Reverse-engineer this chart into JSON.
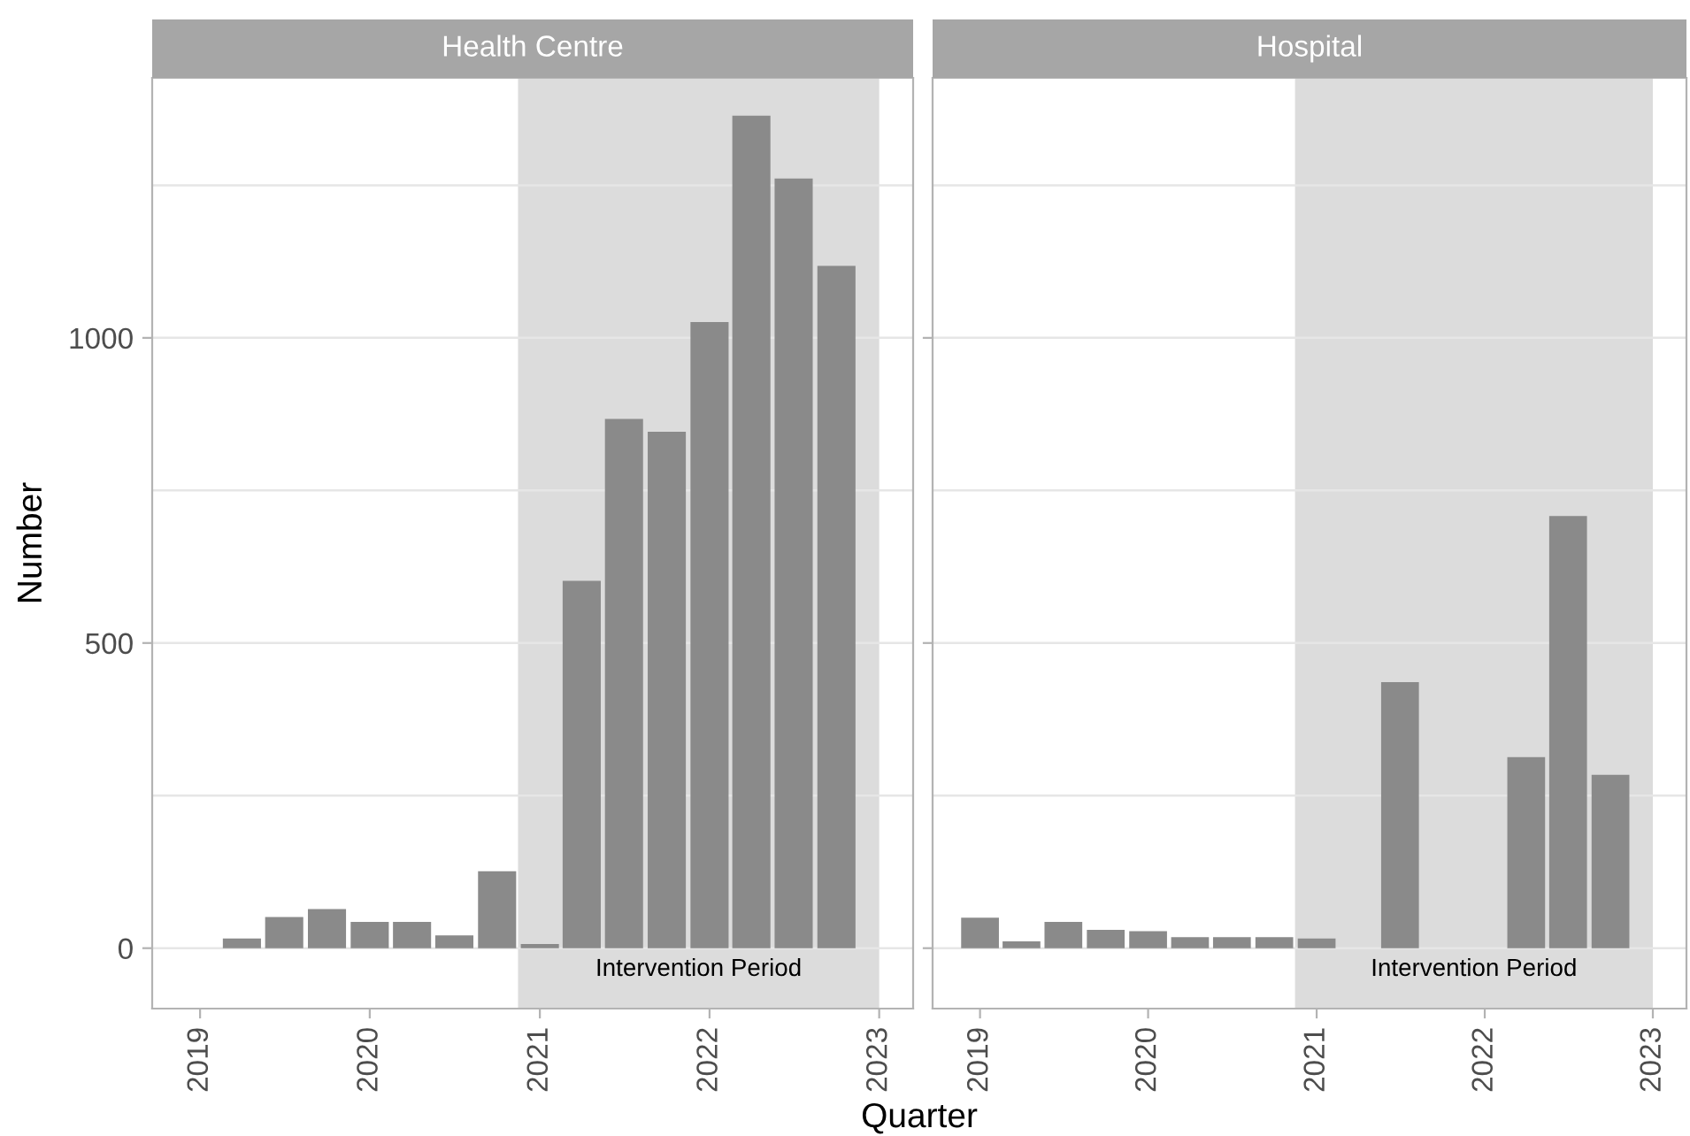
{
  "chart_data": [
    {
      "type": "bar",
      "title": "Health Centre",
      "xlabel": "Quarter",
      "ylabel": "Number",
      "x": [
        "2019-04-01",
        "2019-07-01",
        "2019-10-01",
        "2020-01-01",
        "2020-04-01",
        "2020-07-01",
        "2020-10-01",
        "2021-01-01",
        "2021-04-01",
        "2021-07-01",
        "2021-10-01",
        "2022-01-01",
        "2022-04-01",
        "2022-07-01",
        "2022-10-01"
      ],
      "values": [
        16,
        51,
        64,
        43,
        43,
        21,
        126,
        7,
        602,
        867,
        846,
        1026,
        1364,
        1261,
        1118
      ],
      "color": "#8a8a8a",
      "xlim": [
        "2018-09-20",
        "2023-03-15"
      ],
      "xticks": [
        {
          "value": "2019-01-01",
          "label": "2019"
        },
        {
          "value": "2020-01-01",
          "label": "2020"
        },
        {
          "value": "2021-01-01",
          "label": "2021"
        },
        {
          "value": "2022-01-01",
          "label": "2022"
        },
        {
          "value": "2023-01-01",
          "label": "2023"
        }
      ],
      "ylim": [
        -99,
        1426
      ],
      "yticks": [
        0,
        {
          "value": 250,
          "label": null
        },
        500,
        {
          "value": 750,
          "label": null
        },
        1000,
        {
          "value": 1250,
          "label": null
        }
      ],
      "bands": [
        {
          "axis": "x",
          "from": "2020-11-15",
          "to": "2023-01-01",
          "label": "Intervention Period",
          "color": "#dcdcdc"
        }
      ],
      "grid": "y"
    },
    {
      "type": "bar",
      "title": "Hospital",
      "x": [
        "2019-01-01",
        "2019-04-01",
        "2019-07-01",
        "2019-10-01",
        "2020-01-01",
        "2020-04-01",
        "2020-07-01",
        "2020-10-01",
        "2021-01-01",
        "2021-04-01",
        "2021-07-01",
        "2021-10-01",
        "2022-01-01",
        "2022-04-01",
        "2022-07-01",
        "2022-10-01"
      ],
      "values": [
        50,
        11,
        43,
        30,
        28,
        18,
        18,
        18,
        16,
        null,
        436,
        null,
        null,
        313,
        708,
        284
      ],
      "color": "#8a8a8a",
      "xlim": [
        "2018-09-20",
        "2023-03-15"
      ],
      "xticks": [
        {
          "value": "2019-01-01",
          "label": "2019"
        },
        {
          "value": "2020-01-01",
          "label": "2020"
        },
        {
          "value": "2021-01-01",
          "label": "2021"
        },
        {
          "value": "2022-01-01",
          "label": "2022"
        },
        {
          "value": "2023-01-01",
          "label": "2023"
        }
      ],
      "ylim": [
        -99,
        1426
      ],
      "yticks": [
        0,
        {
          "value": 250,
          "label": null
        },
        500,
        {
          "value": 750,
          "label": null
        },
        1000,
        {
          "value": 1250,
          "label": null
        }
      ],
      "bands": [
        {
          "axis": "x",
          "from": "2020-11-15",
          "to": "2023-01-01",
          "label": "Intervention Period",
          "color": "#dcdcdc"
        }
      ],
      "grid": "y",
      "tick_labels": "x"
    }
  ]
}
